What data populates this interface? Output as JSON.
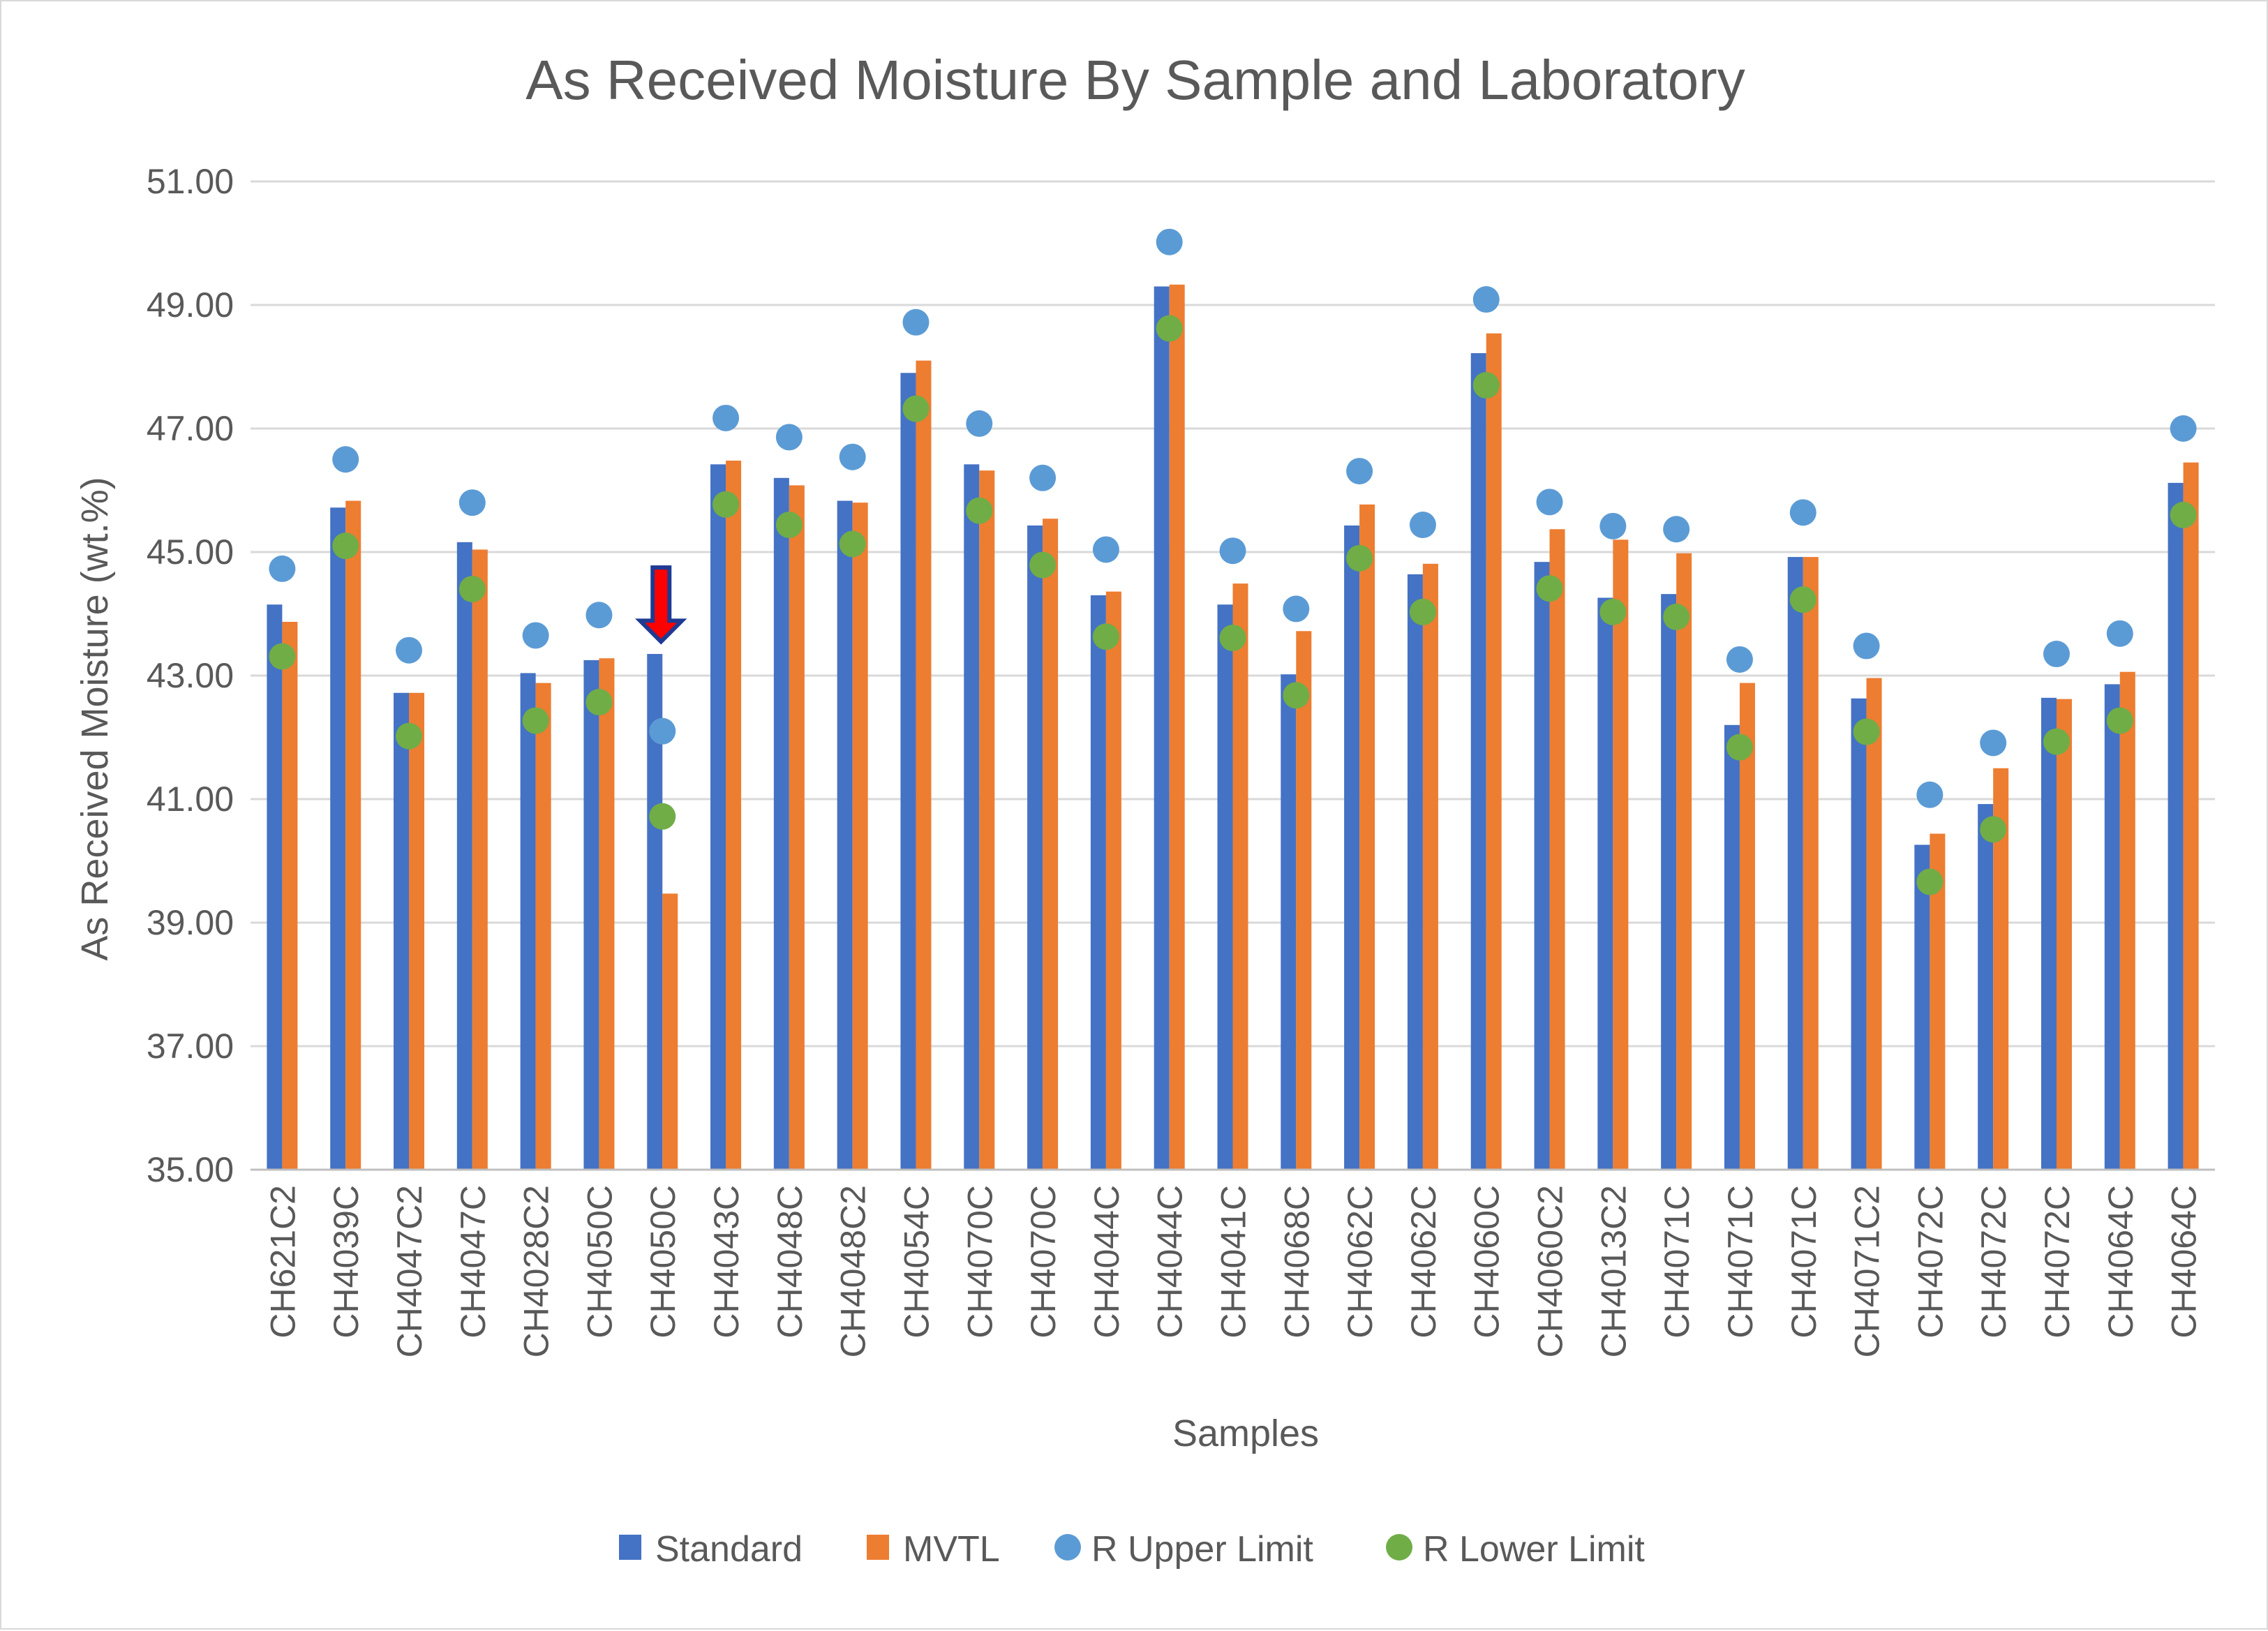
{
  "chart_data": {
    "type": "bar",
    "title": "As Received Moisture By Sample and Laboratory",
    "xlabel": "Samples",
    "ylabel": "As Received Moisture (wt.%)",
    "ylim": [
      35,
      51
    ],
    "yticks": [
      "35.00",
      "37.00",
      "39.00",
      "41.00",
      "43.00",
      "45.00",
      "47.00",
      "49.00",
      "51.00"
    ],
    "grid": true,
    "legend_position": "bottom",
    "categories": [
      "CH621C2",
      "CH4039C",
      "CH4047C2",
      "CH4047C",
      "CH4028C2",
      "CH4050C",
      "CH4050C",
      "CH4043C",
      "CH4048C",
      "CH4048C2",
      "CH4054C",
      "CH4070C",
      "CH4070C",
      "CH4044C",
      "CH4044C",
      "CH4041C",
      "CH4068C",
      "CH4062C",
      "CH4062C",
      "CH4060C",
      "CH4060C2",
      "CH4013C2",
      "CH4071C",
      "CH4071C",
      "CH4071C",
      "CH4071C2",
      "CH4072C",
      "CH4072C",
      "CH4072C",
      "CH4064C",
      "CH4064C"
    ],
    "series": [
      {
        "name": "Standard",
        "kind": "bar",
        "color": "#4472c4",
        "values": [
          44.15,
          45.72,
          42.72,
          45.16,
          43.04,
          43.25,
          43.35,
          46.42,
          46.2,
          45.83,
          47.9,
          46.42,
          45.43,
          44.3,
          49.3,
          44.15,
          43.02,
          45.43,
          44.64,
          48.22,
          44.84,
          44.26,
          44.32,
          42.2,
          44.92,
          42.63,
          40.26,
          40.92,
          42.64,
          42.86,
          46.12
        ]
      },
      {
        "name": "MVTL",
        "kind": "bar",
        "color": "#ed7d31",
        "values": [
          43.87,
          45.83,
          42.72,
          45.04,
          42.88,
          43.28,
          39.47,
          46.48,
          46.08,
          45.8,
          48.1,
          46.32,
          45.54,
          44.36,
          49.33,
          44.49,
          43.72,
          45.77,
          44.81,
          48.54,
          45.37,
          45.2,
          44.98,
          42.88,
          44.92,
          42.96,
          40.44,
          41.5,
          42.62,
          43.06,
          46.45
        ]
      },
      {
        "name": "R Upper Limit",
        "kind": "marker",
        "color": "#5b9bd5",
        "values": [
          44.73,
          46.5,
          43.41,
          45.8,
          43.65,
          43.98,
          42.1,
          47.17,
          46.86,
          46.54,
          48.72,
          47.08,
          46.2,
          45.04,
          50.02,
          45.02,
          44.08,
          46.31,
          45.44,
          49.09,
          45.81,
          45.42,
          45.37,
          43.26,
          45.64,
          43.48,
          41.07,
          41.91,
          43.35,
          43.68,
          47.0
        ]
      },
      {
        "name": "R Lower Limit",
        "kind": "marker",
        "color": "#70ad47",
        "values": [
          43.31,
          45.1,
          42.02,
          44.4,
          42.27,
          42.57,
          40.72,
          45.77,
          45.44,
          45.13,
          47.32,
          45.67,
          44.79,
          43.63,
          48.62,
          43.61,
          42.68,
          44.9,
          44.03,
          47.7,
          44.41,
          44.03,
          43.95,
          41.84,
          44.23,
          42.09,
          39.66,
          40.51,
          41.93,
          42.27,
          45.6
        ]
      }
    ],
    "annotations": [
      {
        "type": "down-arrow",
        "category_index": 6,
        "from_value": 44.75,
        "to_value": 43.55,
        "fill": "#ff0000",
        "stroke": "#1f3a93",
        "label": ""
      }
    ]
  }
}
